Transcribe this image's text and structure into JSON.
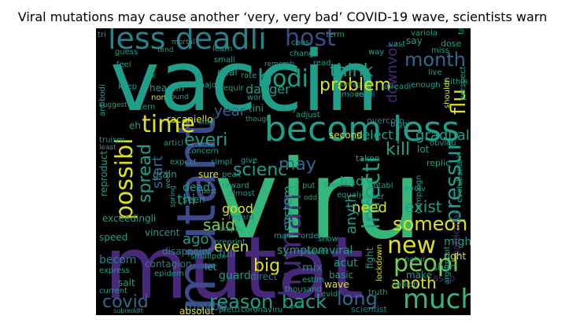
{
  "title": "Viral mutations may cause another ‘very, very bad’ COVID-19 wave, scientists warn",
  "palette": {
    "yellow": "#dde318",
    "lime": "#7ad151",
    "green": "#35b779",
    "teal": "#1f9e89",
    "cyan": "#26828e",
    "blue": "#31688e",
    "indigo": "#3e4989",
    "violet": "#482878",
    "purple": "#440154",
    "background": "#000000"
  },
  "words": [
    {
      "text": "viru",
      "color": "green"
    },
    {
      "text": "vaccin",
      "color": "teal"
    },
    {
      "text": "mutat",
      "color": "violet"
    },
    {
      "text": "less deadli",
      "color": "cyan"
    },
    {
      "text": "becom less",
      "color": "teal"
    },
    {
      "text": "mutant",
      "color": "indigo"
    },
    {
      "text": "host",
      "color": "indigo"
    },
    {
      "text": "month",
      "color": "blue"
    },
    {
      "text": "time",
      "color": "yellow"
    },
    {
      "text": "possibl",
      "color": "yellow"
    },
    {
      "text": "bodi",
      "color": "teal"
    },
    {
      "text": "everi",
      "color": "teal"
    },
    {
      "text": "think",
      "color": "teal"
    },
    {
      "text": "problem",
      "color": "yellow"
    },
    {
      "text": "downvot",
      "color": "violet"
    },
    {
      "text": "flu",
      "color": "yellow"
    },
    {
      "text": "pressur",
      "color": "teal"
    },
    {
      "text": "kill",
      "color": "teal"
    },
    {
      "text": "scienc",
      "color": "teal"
    },
    {
      "text": "spread",
      "color": "teal"
    },
    {
      "text": "infecti",
      "color": "teal"
    },
    {
      "text": "danger",
      "color": "teal"
    },
    {
      "text": "year",
      "color": "blue"
    },
    {
      "text": "may",
      "color": "blue"
    },
    {
      "text": "new",
      "color": "yellow"
    },
    {
      "text": "peopl",
      "color": "lime"
    },
    {
      "text": "much",
      "color": "green"
    },
    {
      "text": "long",
      "color": "blue"
    },
    {
      "text": "back",
      "color": "teal"
    },
    {
      "text": "reason",
      "color": "teal"
    },
    {
      "text": "covid",
      "color": "blue"
    },
    {
      "text": "maybe",
      "color": "blue"
    },
    {
      "text": "human",
      "color": "violet"
    },
    {
      "text": "anoth",
      "color": "yellow"
    },
    {
      "text": "someon",
      "color": "yellow"
    },
    {
      "text": "exist",
      "color": "teal"
    },
    {
      "text": "said",
      "color": "lime"
    },
    {
      "text": "good",
      "color": "yellow"
    },
    {
      "text": "even",
      "color": "yellow"
    },
    {
      "text": "ago",
      "color": "teal"
    },
    {
      "text": "big",
      "color": "yellow"
    },
    {
      "text": "bad",
      "color": "teal"
    },
    {
      "text": "start",
      "color": "blue"
    },
    {
      "text": "gradual",
      "color": "teal"
    },
    {
      "text": "system",
      "color": "teal"
    },
    {
      "text": "thi",
      "color": "teal"
    },
    {
      "text": "need",
      "color": "yellow"
    },
    {
      "text": "anyth",
      "color": "teal"
    },
    {
      "text": "select",
      "color": "teal"
    },
    {
      "text": "particular",
      "color": "violet"
    },
    {
      "text": "symptom",
      "color": "teal"
    },
    {
      "text": "might",
      "color": "teal"
    },
    {
      "text": "racaniello",
      "color": "yellow"
    },
    {
      "text": "second",
      "color": "yellow"
    },
    {
      "text": "lockdown",
      "color": "yellow"
    },
    {
      "text": "vincent",
      "color": "teal"
    },
    {
      "text": "dead",
      "color": "teal"
    },
    {
      "text": "seen",
      "color": "teal"
    },
    {
      "text": "mix",
      "color": "cyan"
    },
    {
      "text": "direct",
      "color": "cyan"
    },
    {
      "text": "guard",
      "color": "teal"
    },
    {
      "text": "full",
      "color": "cyan"
    },
    {
      "text": "viral",
      "color": "teal"
    },
    {
      "text": "acut",
      "color": "teal"
    },
    {
      "text": "basic",
      "color": "teal"
    },
    {
      "text": "fight",
      "color": "teal"
    },
    {
      "text": "wave",
      "color": "yellow"
    },
    {
      "text": "truth",
      "color": "teal"
    },
    {
      "text": "right",
      "color": "yellow"
    },
    {
      "text": "make",
      "color": "teal"
    },
    {
      "text": "short",
      "color": "teal"
    },
    {
      "text": "asap",
      "color": "violet"
    },
    {
      "text": "million",
      "color": "teal"
    },
    {
      "text": "scientist",
      "color": "cyan"
    },
    {
      "text": "absolut",
      "color": "yellow"
    },
    {
      "text": "coronaviru",
      "color": "teal"
    },
    {
      "text": "pretti",
      "color": "teal"
    },
    {
      "text": "subreddit",
      "color": "teal"
    },
    {
      "text": "current",
      "color": "teal"
    },
    {
      "text": "salt",
      "color": "teal"
    },
    {
      "text": "express",
      "color": "teal"
    },
    {
      "text": "thousand",
      "color": "teal"
    },
    {
      "text": "estim",
      "color": "teal"
    },
    {
      "text": "evid",
      "color": "teal"
    },
    {
      "text": "contagion",
      "color": "cyan"
    },
    {
      "text": "epidem",
      "color": "teal"
    },
    {
      "text": "disappoint",
      "color": "cyan"
    },
    {
      "text": "preprint",
      "color": "teal"
    },
    {
      "text": "smallpox",
      "color": "teal"
    },
    {
      "text": "let",
      "color": "teal"
    },
    {
      "text": "mani",
      "color": "teal"
    },
    {
      "text": "order",
      "color": "teal"
    },
    {
      "text": "sever",
      "color": "teal"
    },
    {
      "text": "show",
      "color": "teal"
    },
    {
      "text": "exceedingli",
      "color": "teal"
    },
    {
      "text": "speed",
      "color": "teal"
    },
    {
      "text": "reproduct",
      "color": "teal"
    },
    {
      "text": "becom",
      "color": "cyan"
    },
    {
      "text": "regard",
      "color": "cyan"
    },
    {
      "text": "reward",
      "color": "teal"
    },
    {
      "text": "almost",
      "color": "teal"
    },
    {
      "text": "peak",
      "color": "teal"
    },
    {
      "text": "sure",
      "color": "yellow"
    },
    {
      "text": "give",
      "color": "teal"
    },
    {
      "text": "grain",
      "color": "teal"
    },
    {
      "text": "expect",
      "color": "teal"
    },
    {
      "text": "simpl",
      "color": "teal"
    },
    {
      "text": "concern",
      "color": "teal"
    },
    {
      "text": "articl",
      "color": "teal"
    },
    {
      "text": "truism",
      "color": "teal"
    },
    {
      "text": "altern",
      "color": "teal"
    },
    {
      "text": "non",
      "color": "yellow"
    },
    {
      "text": "headlin",
      "color": "teal"
    },
    {
      "text": "major",
      "color": "teal"
    },
    {
      "text": "deal",
      "color": "teal"
    },
    {
      "text": "requir",
      "color": "teal"
    },
    {
      "text": "rate",
      "color": "teal"
    },
    {
      "text": "word",
      "color": "teal"
    },
    {
      "text": "tini",
      "color": "teal"
    },
    {
      "text": "delay",
      "color": "teal"
    },
    {
      "text": "adjust",
      "color": "teal"
    },
    {
      "text": "though",
      "color": "teal"
    },
    {
      "text": "amount",
      "color": "teal"
    },
    {
      "text": "realli",
      "color": "teal"
    },
    {
      "text": "overcom",
      "color": "cyan"
    },
    {
      "text": "taken",
      "color": "teal"
    },
    {
      "text": "lot",
      "color": "teal"
    },
    {
      "text": "replic",
      "color": "teal"
    },
    {
      "text": "obviou",
      "color": "teal"
    },
    {
      "text": "evolutionari",
      "color": "teal"
    },
    {
      "text": "campaign",
      "color": "teal"
    },
    {
      "text": "evolv",
      "color": "teal"
    },
    {
      "text": "higher",
      "color": "teal"
    },
    {
      "text": "notabl",
      "color": "teal"
    },
    {
      "text": "equal",
      "color": "teal"
    },
    {
      "text": "natur",
      "color": "teal"
    },
    {
      "text": "argument",
      "color": "teal"
    },
    {
      "text": "biggi",
      "color": "teal"
    },
    {
      "text": "live",
      "color": "teal"
    },
    {
      "text": "within",
      "color": "teal"
    },
    {
      "text": "perspect",
      "color": "teal"
    },
    {
      "text": "shouldn",
      "color": "yellow"
    },
    {
      "text": "enough",
      "color": "teal"
    },
    {
      "text": "alreadi",
      "color": "teal"
    },
    {
      "text": "contag",
      "color": "teal"
    },
    {
      "text": "read",
      "color": "teal"
    },
    {
      "text": "dose",
      "color": "teal"
    },
    {
      "text": "miss",
      "color": "teal"
    },
    {
      "text": "vast",
      "color": "teal"
    },
    {
      "text": "say",
      "color": "teal"
    },
    {
      "text": "way",
      "color": "teal"
    },
    {
      "text": "term",
      "color": "teal"
    },
    {
      "text": "caus",
      "color": "teal"
    },
    {
      "text": "chang",
      "color": "teal"
    },
    {
      "text": "variola",
      "color": "teal"
    },
    {
      "text": "take",
      "color": "teal"
    },
    {
      "text": "learn",
      "color": "teal"
    },
    {
      "text": "small",
      "color": "teal"
    },
    {
      "text": "rememb",
      "color": "teal"
    },
    {
      "text": "guess",
      "color": "teal"
    },
    {
      "text": "feel",
      "color": "teal"
    },
    {
      "text": "keep",
      "color": "teal"
    },
    {
      "text": "uk",
      "color": "teal"
    },
    {
      "text": "tend",
      "color": "teal"
    },
    {
      "text": "mortal",
      "color": "teal"
    },
    {
      "text": "around",
      "color": "teal"
    },
    {
      "text": "antibodi",
      "color": "teal"
    },
    {
      "text": "suggest",
      "color": "teal"
    },
    {
      "text": "stop",
      "color": "teal"
    },
    {
      "text": "given",
      "color": "teal"
    },
    {
      "text": "week",
      "color": "teal"
    },
    {
      "text": "post",
      "color": "teal"
    },
    {
      "text": "hate",
      "color": "teal"
    },
    {
      "text": "put",
      "color": "teal"
    },
    {
      "text": "odd",
      "color": "teal"
    },
    {
      "text": "skeptic",
      "color": "teal"
    },
    {
      "text": "therefor",
      "color": "teal"
    },
    {
      "text": "tri",
      "color": "teal"
    },
    {
      "text": "eh",
      "color": "teal"
    },
    {
      "text": "least",
      "color": "teal"
    },
    {
      "text": "spring",
      "color": "teal"
    },
    {
      "text": "grad",
      "color": "teal"
    }
  ]
}
